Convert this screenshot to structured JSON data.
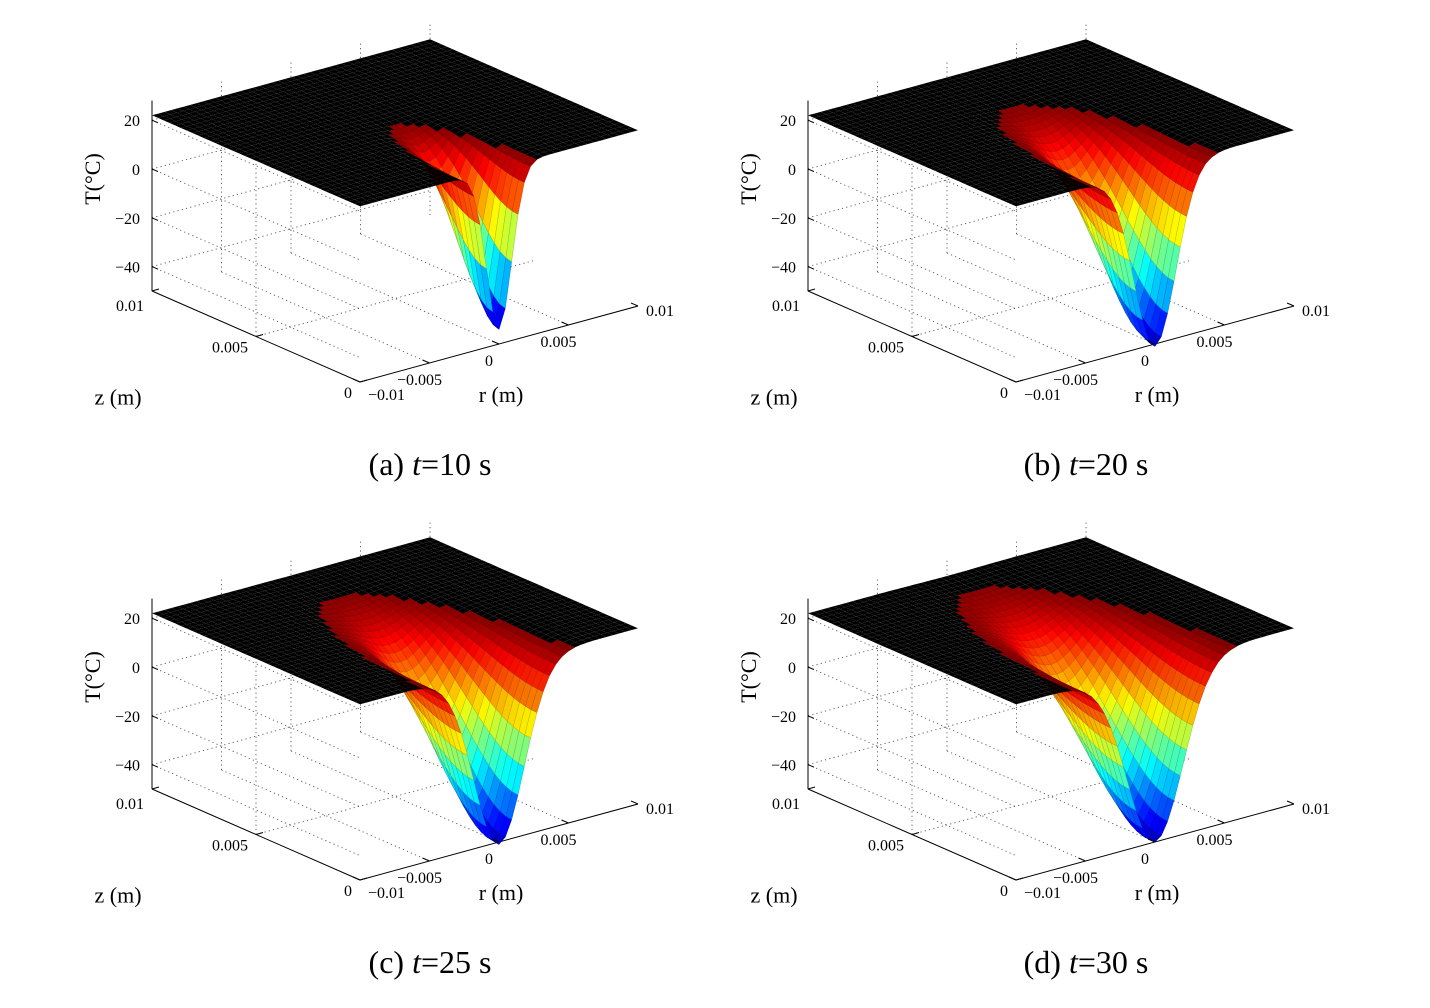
{
  "figure": {
    "panels": [
      {
        "label": "(a)",
        "t_var": "t",
        "t_value": "=10 s"
      },
      {
        "label": "(b)",
        "t_var": "t",
        "t_value": "=20 s"
      },
      {
        "label": "(c)",
        "t_var": "t",
        "t_value": "=25 s"
      },
      {
        "label": "(d)",
        "t_var": "t",
        "t_value": "=30 s"
      }
    ]
  },
  "colors": {
    "surface_top": "#7a1f1a",
    "surface_bottom": "#0a1ec8",
    "colormap": "jet"
  },
  "chart_data": [
    {
      "type": "surface3d",
      "zlabel": "T(°C)",
      "xlabel": "z (m)",
      "ylabel": "r (m)",
      "z_ticks": [
        "20",
        "0",
        "−20",
        "−40"
      ],
      "zaxis_ticks": [
        "0.01",
        "0.005",
        "0"
      ],
      "r_ticks": [
        "−0.01",
        "−0.005",
        "0",
        "0.005",
        "0.01"
      ],
      "zlim": [
        -50,
        28
      ],
      "z_range": [
        0,
        0.01
      ],
      "r_range": [
        -0.01,
        0.01
      ],
      "grid": true,
      "ambient_T": 22,
      "min_T": -44,
      "min_at": {
        "z": 0,
        "r": 0
      },
      "depth_m": 0.0017,
      "width_m": 0.0009
    },
    {
      "type": "surface3d",
      "zlabel": "T(°C)",
      "xlabel": "z (m)",
      "ylabel": "r (m)",
      "z_ticks": [
        "20",
        "0",
        "−20",
        "−40"
      ],
      "zaxis_ticks": [
        "0.01",
        "0.005",
        "0"
      ],
      "r_ticks": [
        "−0.01",
        "−0.005",
        "0",
        "0.005",
        "0.01"
      ],
      "zlim": [
        -50,
        28
      ],
      "z_range": [
        0,
        0.01
      ],
      "r_range": [
        -0.01,
        0.01
      ],
      "grid": true,
      "ambient_T": 22,
      "min_T": -51,
      "min_at": {
        "z": 0,
        "r": 0
      },
      "depth_m": 0.0024,
      "width_m": 0.0015
    },
    {
      "type": "surface3d",
      "zlabel": "T(°C)",
      "xlabel": "z (m)",
      "ylabel": "r (m)",
      "z_ticks": [
        "20",
        "0",
        "−20",
        "−40"
      ],
      "zaxis_ticks": [
        "0.01",
        "0.005",
        "0"
      ],
      "r_ticks": [
        "−0.01",
        "−0.005",
        "0",
        "0.005",
        "0.01"
      ],
      "zlim": [
        -50,
        28
      ],
      "z_range": [
        0,
        0.01
      ],
      "r_range": [
        -0.01,
        0.01
      ],
      "grid": true,
      "ambient_T": 22,
      "min_T": -51,
      "min_at": {
        "z": 0,
        "r": 0
      },
      "depth_m": 0.0027,
      "width_m": 0.0018
    },
    {
      "type": "surface3d",
      "zlabel": "T(°C)",
      "xlabel": "z (m)",
      "ylabel": "r (m)",
      "z_ticks": [
        "20",
        "0",
        "−20",
        "−40"
      ],
      "zaxis_ticks": [
        "0.01",
        "0.005",
        "0"
      ],
      "r_ticks": [
        "−0.01",
        "−0.005",
        "0",
        "0.005",
        "0.01"
      ],
      "zlim": [
        -50,
        28
      ],
      "z_range": [
        0,
        0.01
      ],
      "r_range": [
        -0.01,
        0.01
      ],
      "grid": true,
      "ambient_T": 22,
      "min_T": -50,
      "min_at": {
        "z": 0,
        "r": 0
      },
      "depth_m": 0.003,
      "width_m": 0.002
    }
  ]
}
